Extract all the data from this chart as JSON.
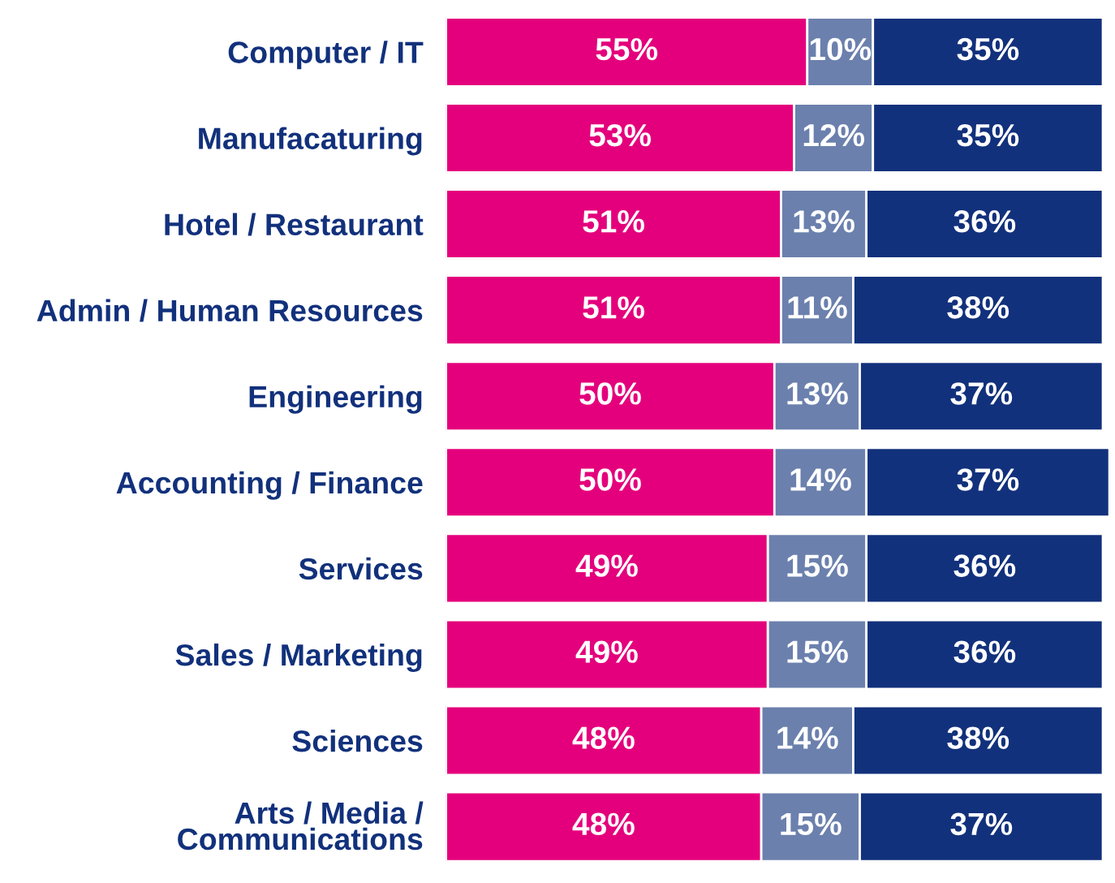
{
  "chart_data": {
    "type": "bar",
    "orientation": "horizontal",
    "stacked": true,
    "categories": [
      "Computer / IT",
      "Manufacaturing",
      "Hotel / Restaurant",
      "Admin / Human Resources",
      "Engineering",
      "Accounting / Finance",
      "Services",
      "Sales / Marketing",
      "Sciences",
      "Arts / Media /\nCommunications"
    ],
    "series": [
      {
        "color": "#e4007c",
        "values": [
          55,
          53,
          51,
          51,
          50,
          50,
          49,
          49,
          48,
          48
        ],
        "value_labels": [
          "55%",
          "53%",
          "51%",
          "51%",
          "50%",
          "50%",
          "49%",
          "49%",
          "48%",
          "48%"
        ]
      },
      {
        "color": "#6b80ad",
        "values": [
          10,
          12,
          13,
          11,
          13,
          14,
          15,
          15,
          14,
          15
        ],
        "value_labels": [
          "10%",
          "12%",
          "13%",
          "11%",
          "13%",
          "14%",
          "15%",
          "15%",
          "14%",
          "15%"
        ]
      },
      {
        "color": "#12317c",
        "values": [
          35,
          35,
          36,
          38,
          37,
          37,
          36,
          36,
          38,
          37
        ],
        "value_labels": [
          "35%",
          "35%",
          "36%",
          "38%",
          "37%",
          "37%",
          "36%",
          "36%",
          "38%",
          "37%"
        ]
      }
    ],
    "xlim": [
      0,
      101
    ],
    "tick_labels": "y",
    "grid": false,
    "legend": false
  }
}
